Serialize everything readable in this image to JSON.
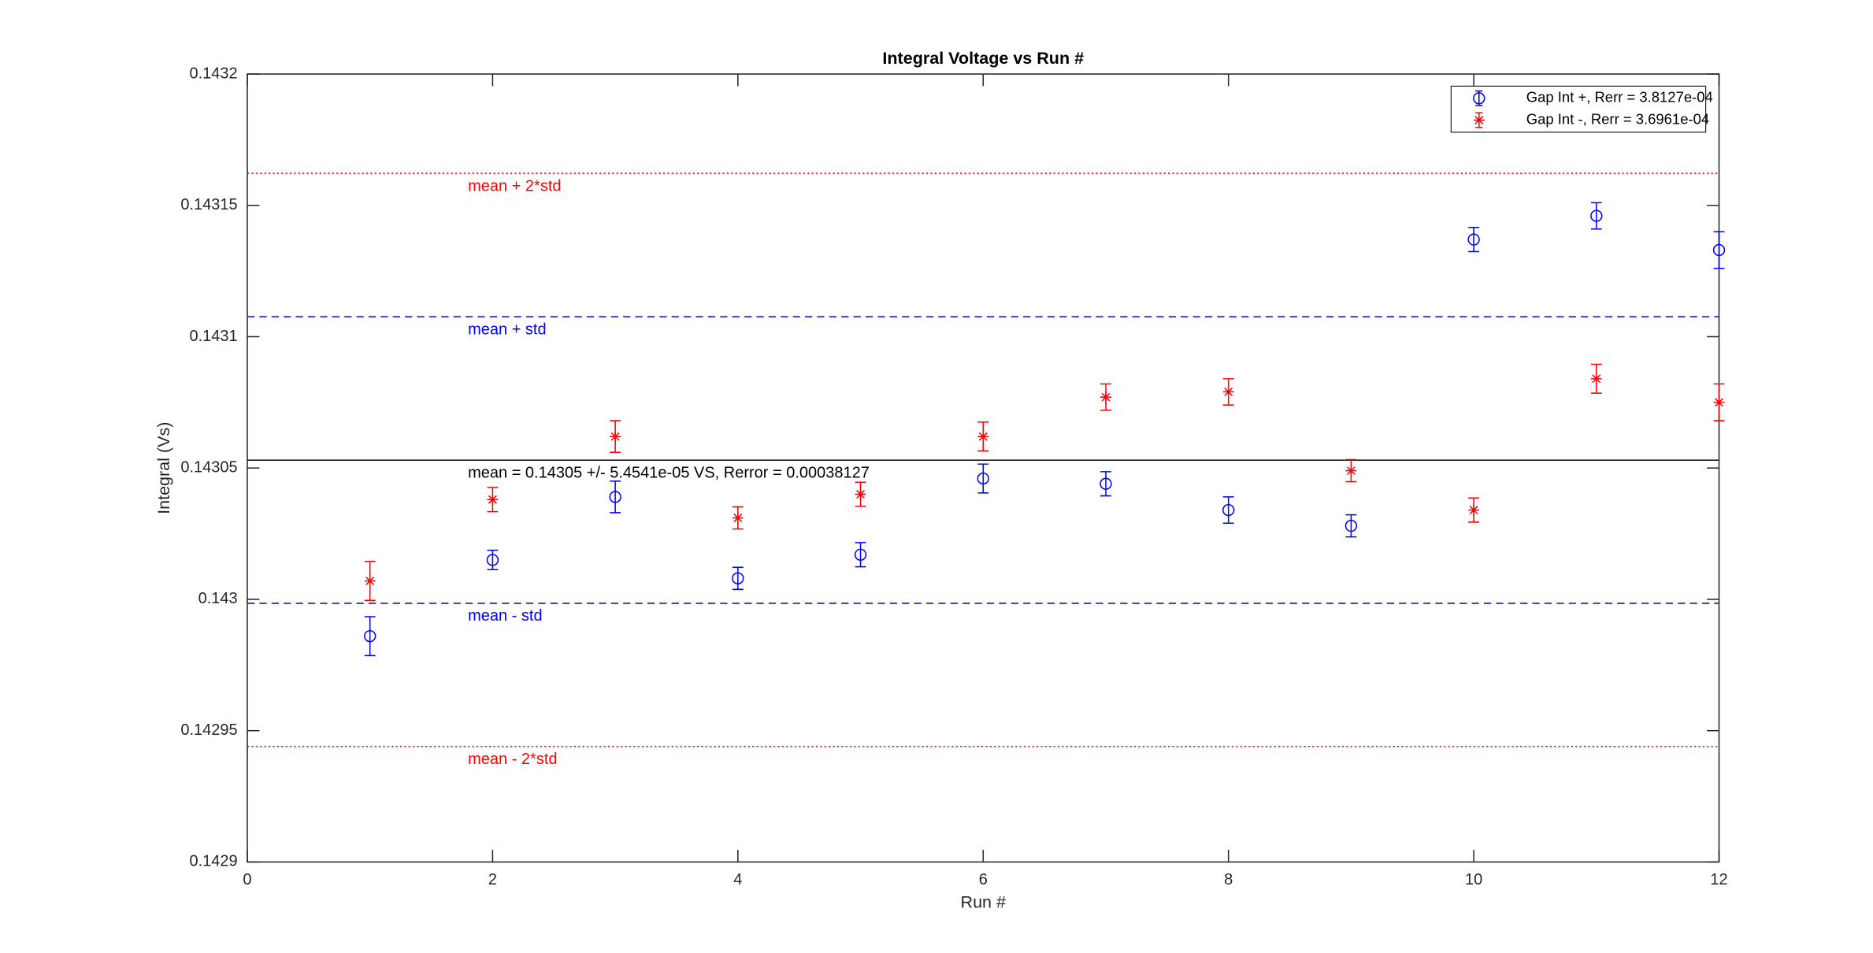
{
  "chart_data": {
    "type": "errorbar",
    "title": "Integral Voltage vs Run #",
    "xlabel": "Run #",
    "ylabel": "Integral (Vs)",
    "xlim": [
      0,
      12
    ],
    "xticks": [
      0,
      2,
      4,
      6,
      8,
      10,
      12
    ],
    "ylim": [
      0.1429,
      0.1432
    ],
    "yticks": [
      0.1429,
      0.14295,
      0.143,
      0.14305,
      0.1431,
      0.14315,
      0.1432
    ],
    "x": [
      1,
      2,
      3,
      4,
      5,
      6,
      7,
      8,
      9,
      10,
      11,
      12
    ],
    "legend": "upper right",
    "series": [
      {
        "name": "Gap Int +, Rerr = 3.8127e-04",
        "color": "#0000ff",
        "marker": "circle",
        "values": [
          0.142986,
          0.143015,
          0.143039,
          0.143008,
          0.143017,
          0.143046,
          0.143044,
          0.143034,
          0.143028,
          0.143137,
          0.143146,
          0.143133
        ],
        "errors": [
          7.4e-06,
          3.7e-06,
          6e-06,
          4.2e-06,
          4.6e-06,
          5.5e-06,
          4.6e-06,
          5e-06,
          4.2e-06,
          4.6e-06,
          5e-06,
          7e-06
        ]
      },
      {
        "name": "Gap Int -, Rerr = 3.6961e-04",
        "color": "#ff0000",
        "marker": "asterisk",
        "values": [
          0.143007,
          0.143038,
          0.143062,
          0.143031,
          0.14304,
          0.143062,
          0.143077,
          0.143079,
          0.143049,
          0.143034,
          0.143084,
          0.143075
        ],
        "errors": [
          7.4e-06,
          4.6e-06,
          6e-06,
          4.2e-06,
          4.6e-06,
          5.5e-06,
          5e-06,
          5e-06,
          4.2e-06,
          4.6e-06,
          5.5e-06,
          7e-06
        ]
      }
    ],
    "reference_lines": [
      {
        "label": "mean + 2*std",
        "value": 0.1431622,
        "color": "#ff0000",
        "style": "dotted"
      },
      {
        "label": "mean + std",
        "value": 0.1431076,
        "color": "#0000ff",
        "style": "dashed"
      },
      {
        "label": "mean = 0.14305 +/- 5.4541e-05 VS, Rerror = 0.00038127",
        "value": 0.143053,
        "color": "#000000",
        "style": "solid"
      },
      {
        "label": "mean - std",
        "value": 0.1429985,
        "color": "#0000ff",
        "style": "dashed"
      },
      {
        "label": "mean - 2*std",
        "value": 0.142944,
        "color": "#ff0000",
        "style": "dotted"
      }
    ]
  }
}
